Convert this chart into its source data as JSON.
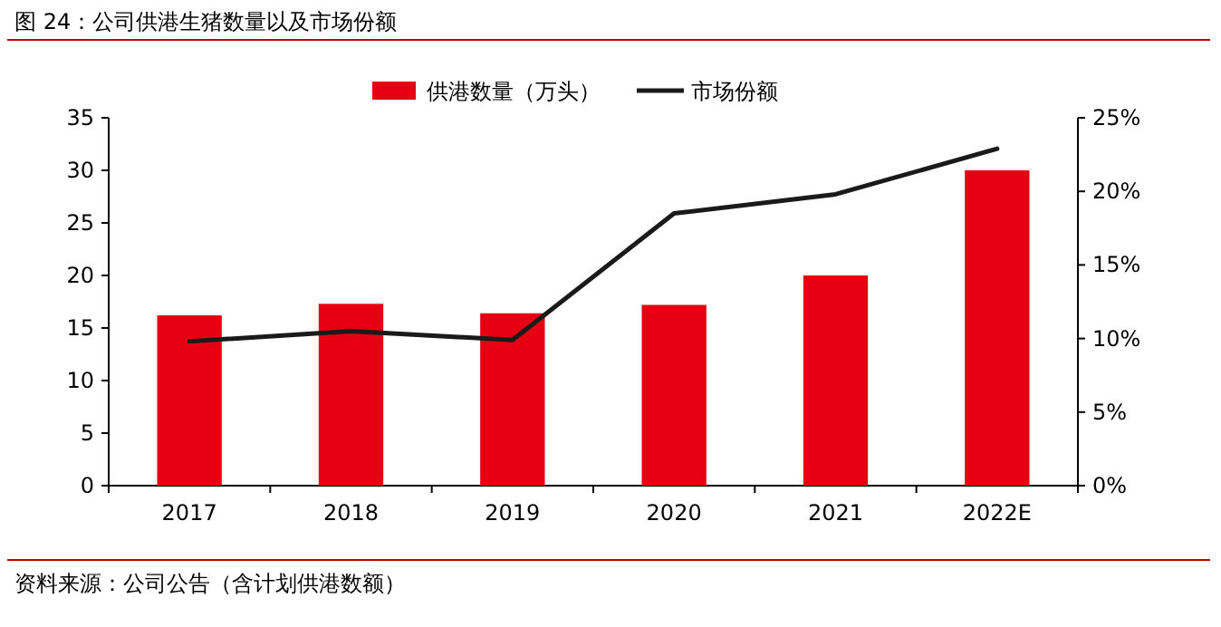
{
  "chart_data": {
    "type": "bar",
    "title": "图 24：公司供港生猪数量以及市场份额",
    "categories": [
      "2017",
      "2018",
      "2019",
      "2020",
      "2021",
      "2022E"
    ],
    "series": [
      {
        "name": "供港数量（万头）",
        "color": "#e60012",
        "values": [
          16.2,
          17.3,
          16.4,
          17.2,
          20,
          30
        ]
      },
      {
        "name": "市场份额",
        "type": "line",
        "axis": "y2",
        "color": "#1a1a1a",
        "values": [
          9.8,
          10.5,
          9.9,
          18.5,
          19.8,
          22.9
        ]
      }
    ],
    "ylim": [
      0,
      35
    ],
    "yticks": [
      0,
      5,
      10,
      15,
      20,
      25,
      30,
      35
    ],
    "y2lim": [
      0,
      25
    ],
    "y2ticks": [
      {
        "value": 0,
        "label": "0%"
      },
      {
        "value": 5,
        "label": "5%"
      },
      {
        "value": 10,
        "label": "10%"
      },
      {
        "value": 15,
        "label": "15%"
      },
      {
        "value": 20,
        "label": "20%"
      },
      {
        "value": 25,
        "label": "25%"
      }
    ],
    "legend": "top",
    "annotations": [
      "资料来源：公司公告（含计划供港数额）"
    ]
  }
}
